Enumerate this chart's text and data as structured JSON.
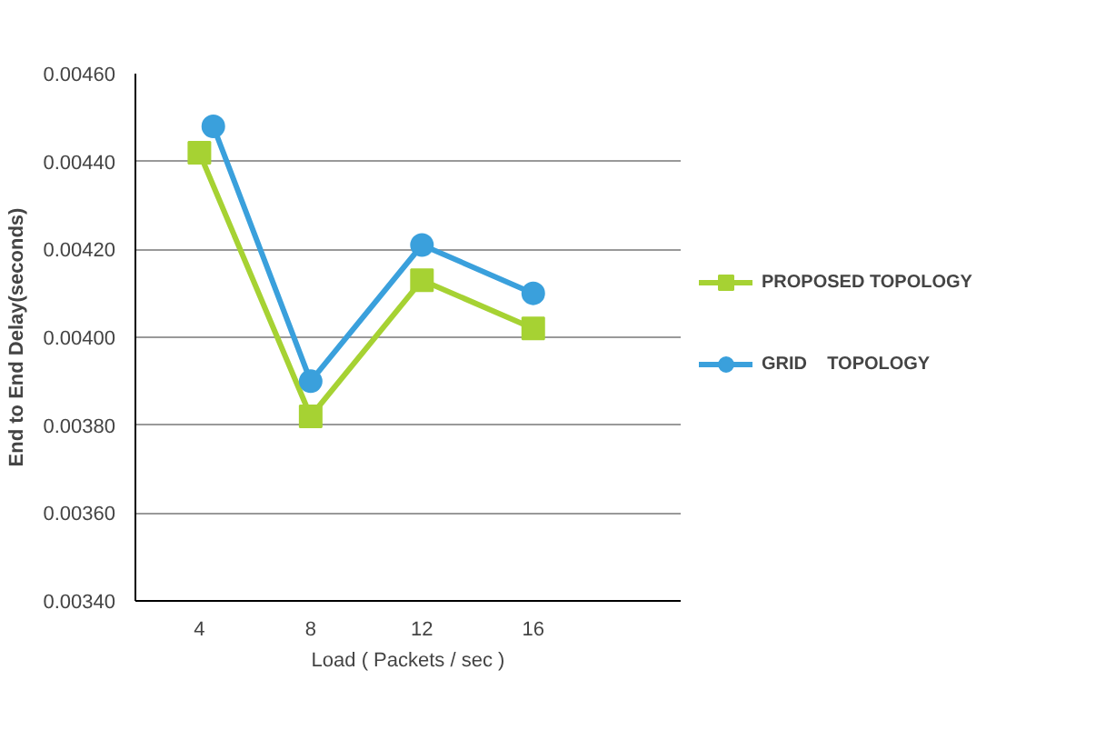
{
  "chart_data": {
    "type": "line",
    "xlabel": "Load ( Packets / sec )",
    "ylabel": "End to End Delay(seconds)",
    "x": [
      4,
      8,
      12,
      16
    ],
    "xlim": [
      1.7,
      21.3
    ],
    "xticks": [
      4,
      8,
      12,
      16
    ],
    "ylim": [
      0.0034,
      0.0046
    ],
    "yticks": [
      {
        "value": 0.0034,
        "label": "0.00340"
      },
      {
        "value": 0.0036,
        "label": "0.00360"
      },
      {
        "value": 0.0038,
        "label": "0.00380"
      },
      {
        "value": 0.004,
        "label": "0.00400"
      },
      {
        "value": 0.0042,
        "label": "0.00420"
      },
      {
        "value": 0.0044,
        "label": "0.00440"
      },
      {
        "value": 0.0046,
        "label": "0.00460"
      }
    ],
    "series": [
      {
        "name": "PROPOSED TOPOLOGY",
        "color": "#a6d233",
        "marker": "square",
        "values": [
          0.00442,
          0.00382,
          0.00413,
          0.00402
        ]
      },
      {
        "name": "GRID    TOPOLOGY",
        "color": "#3aa0dc",
        "marker": "circle",
        "x": [
          4.5,
          8,
          12,
          16
        ],
        "values": [
          0.00448,
          0.0039,
          0.00421,
          0.0041
        ]
      }
    ],
    "grid": "y",
    "legend": "right"
  }
}
